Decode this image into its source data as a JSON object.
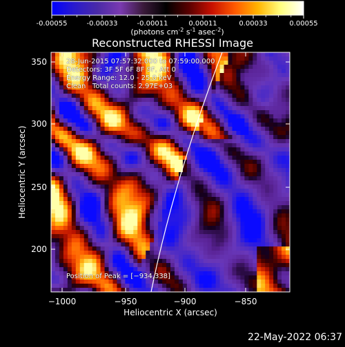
{
  "colorbar": {
    "ticks": [
      "-0.00055",
      "-0.00033",
      "-0.00011",
      "0.00011",
      "0.00033",
      "0.00055"
    ],
    "units_html_parts": [
      "(photons cm",
      "-2",
      " s",
      "-1",
      " asec",
      "-2",
      ")"
    ],
    "stops": [
      "#0000ff",
      "#2a1acc",
      "#4a2aa8",
      "#7a3ab0",
      "#3a1a3a",
      "#000000",
      "#5a0000",
      "#c81000",
      "#ff5a00",
      "#ffb400",
      "#ffff80",
      "#ffffff"
    ]
  },
  "plot": {
    "title": "Reconstructed RHESSI Image",
    "xlabel": "Heliocentric X (arcsec)",
    "ylabel": "Heliocentric Y (arcsec)",
    "xticks": [
      "−1000",
      "−950",
      "−900",
      "−850"
    ],
    "yticks": [
      "350",
      "300",
      "250",
      "200"
    ],
    "info_lines": [
      "28-Jun-2015 07:57:32.000 to 07:59:00.000",
      "Detectors: 3F 5F 6F 8F 9F, Att 0",
      "Energy Range: 12.0 - 25.0 keV",
      "Clean   Total counts: 2.97E+03"
    ],
    "peak_label": "Position of Peak = [−934,338]"
  },
  "footer": {
    "timestamp": "22-May-2022 06:37"
  }
}
